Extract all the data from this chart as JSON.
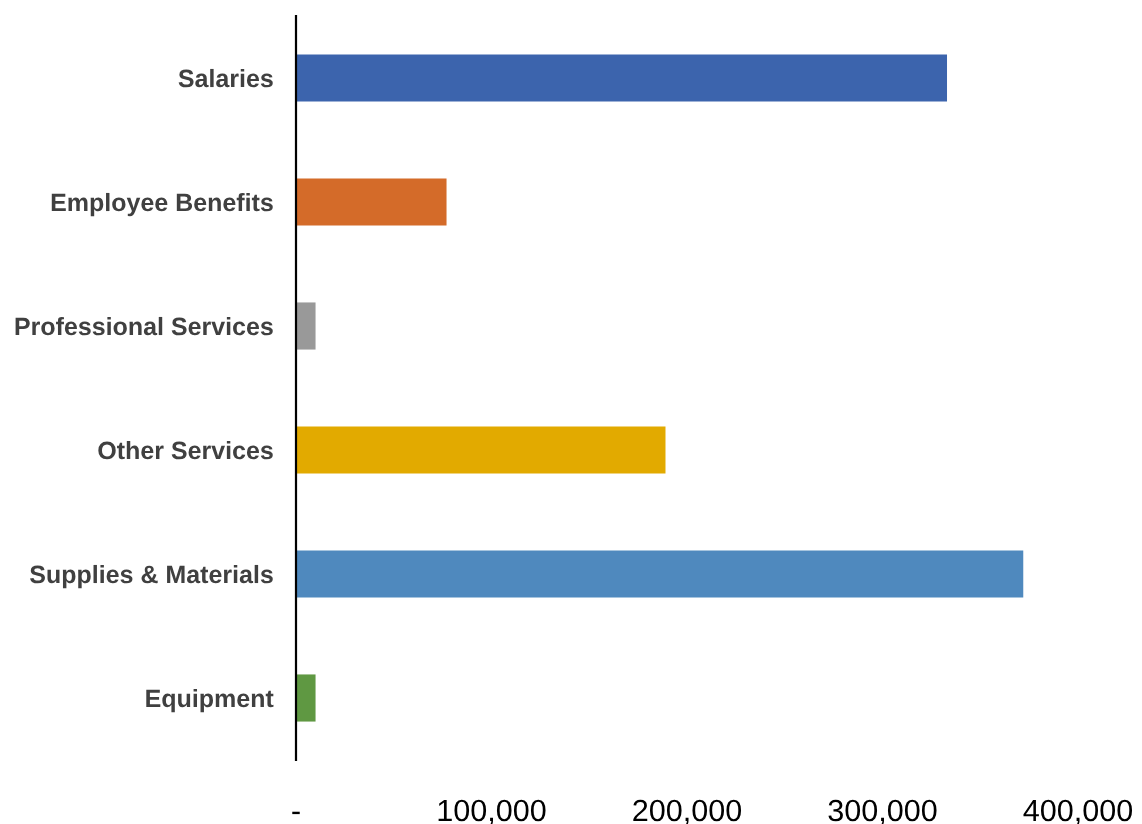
{
  "chart_data": {
    "type": "bar",
    "orientation": "horizontal",
    "categories": [
      "Salaries",
      "Employee Benefits",
      "Professional Services",
      "Other Services",
      "Supplies & Materials",
      "Equipment"
    ],
    "values": [
      333000,
      77000,
      10000,
      189000,
      372000,
      10000
    ],
    "colors": [
      "#3c64ad",
      "#d46b29",
      "#999999",
      "#e2aa00",
      "#4f89be",
      "#5f9842"
    ],
    "xlim": [
      0,
      400000
    ],
    "xticks": [
      {
        "value": 0,
        "label": "-"
      },
      {
        "value": 100000,
        "label": "100,000"
      },
      {
        "value": 200000,
        "label": "200,000"
      },
      {
        "value": 300000,
        "label": "300,000"
      },
      {
        "value": 400000,
        "label": "400,000"
      }
    ],
    "grid": false,
    "legend": false
  }
}
